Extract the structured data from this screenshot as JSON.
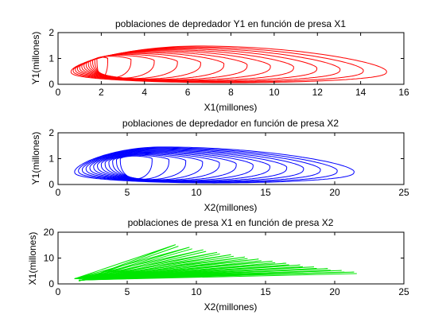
{
  "chart_data": [
    {
      "type": "line",
      "title": "poblaciones de depredador Y1 en función de presa X1",
      "xlabel": "X1(millones)",
      "ylabel": "Y1(millones)",
      "xlim": [
        0,
        16
      ],
      "ylim": [
        0,
        2
      ],
      "xticks": [
        "0",
        "2",
        "4",
        "6",
        "8",
        "10",
        "12",
        "14",
        "16"
      ],
      "yticks": [
        "0",
        "1",
        "2"
      ],
      "color": "#ff0000",
      "series": [
        {
          "kind": "spiral",
          "loops": 13,
          "xmin": [
            1.8,
            0.6
          ],
          "xmax": [
            2.3,
            15.2
          ],
          "ymin": [
            0.28,
            0.06
          ],
          "ymax": [
            1.05,
            1.48
          ],
          "xpeak": [
            2.0,
            6.5
          ],
          "ypeak": [
            1.0,
            0.5
          ]
        }
      ]
    },
    {
      "type": "line",
      "title": "poblaciones de depredador en función de presa X2",
      "xlabel": "X2(millones)",
      "ylabel": "Y1(millones)",
      "xlim": [
        0,
        25
      ],
      "ylim": [
        0,
        2
      ],
      "xticks": [
        "0",
        "5",
        "10",
        "15",
        "20",
        "25"
      ],
      "yticks": [
        "0",
        "1",
        "2"
      ],
      "color": "#0000ff",
      "series": [
        {
          "kind": "spiral",
          "loops": 13,
          "xmin": [
            4.5,
            1.2
          ],
          "xmax": [
            6.8,
            21.4
          ],
          "ymin": [
            0.22,
            0.06
          ],
          "ymax": [
            1.1,
            1.45
          ],
          "xpeak": [
            5.5,
            7.5
          ],
          "ypeak": [
            1.0,
            0.5
          ]
        }
      ]
    },
    {
      "type": "line",
      "title": "poblaciones de presa X1 en función de presa X2",
      "xlabel": "X2(millones)",
      "ylabel": "X1(millones)",
      "xlim": [
        0,
        25
      ],
      "ylim": [
        0,
        20
      ],
      "xticks": [
        "0",
        "5",
        "10",
        "15",
        "20",
        "25"
      ],
      "yticks": [
        "0",
        "10",
        "20"
      ],
      "color": "#00e600",
      "series": [
        {
          "kind": "fan",
          "origin": [
            1.2,
            2.0
          ],
          "tips": [
            [
              8.5,
              15.2
            ],
            [
              9.5,
              14.2
            ],
            [
              10.5,
              13.2
            ],
            [
              11.5,
              12.2
            ],
            [
              12.5,
              11.3
            ],
            [
              13.5,
              10.4
            ],
            [
              14.5,
              9.6
            ],
            [
              15.5,
              8.8
            ],
            [
              16.5,
              8.0
            ],
            [
              17.5,
              7.3
            ],
            [
              18.5,
              6.6
            ],
            [
              19.5,
              5.9
            ],
            [
              20.5,
              5.2
            ],
            [
              21.4,
              4.6
            ]
          ]
        }
      ]
    }
  ]
}
